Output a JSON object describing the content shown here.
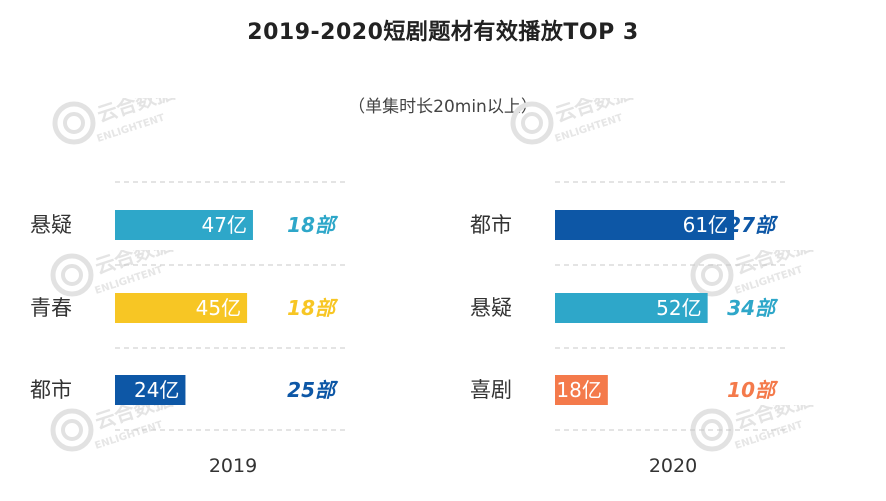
{
  "title": "2019-2020短剧题材有效播放TOP 3",
  "subtitle": "（单集时长20min以上）",
  "watermark": {
    "cn": "云合数据",
    "en": "ENLIGHTENT"
  },
  "chart_data": [
    {
      "type": "bar",
      "orientation": "horizontal",
      "year_label": "2019",
      "value_unit": "亿",
      "count_unit": "部",
      "categories": [
        "悬疑",
        "青春",
        "都市"
      ],
      "values": [
        47,
        45,
        24
      ],
      "counts": [
        18,
        18,
        25
      ],
      "colors": [
        "#2ea7c9",
        "#f7c624",
        "#0d57a6"
      ],
      "xlim": [
        0,
        65
      ]
    },
    {
      "type": "bar",
      "orientation": "horizontal",
      "year_label": "2020",
      "value_unit": "亿",
      "count_unit": "部",
      "categories": [
        "都市",
        "悬疑",
        "喜剧"
      ],
      "values": [
        61,
        52,
        18
      ],
      "counts": [
        27,
        34,
        10
      ],
      "colors": [
        "#0d57a6",
        "#2ea7c9",
        "#f47a4b"
      ],
      "xlim": [
        0,
        65
      ]
    }
  ]
}
